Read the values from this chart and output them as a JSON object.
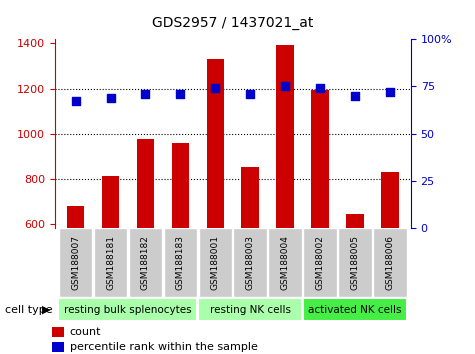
{
  "title": "GDS2957 / 1437021_at",
  "samples": [
    "GSM188007",
    "GSM188181",
    "GSM188182",
    "GSM188183",
    "GSM188001",
    "GSM188003",
    "GSM188004",
    "GSM188002",
    "GSM188005",
    "GSM188006"
  ],
  "bar_values": [
    680,
    810,
    975,
    960,
    1330,
    850,
    1395,
    1195,
    645,
    830
  ],
  "dot_values": [
    67,
    69,
    71,
    71,
    74,
    71,
    75,
    74,
    70,
    72
  ],
  "group_defs": [
    {
      "label": "resting bulk splenocytes",
      "start": 0,
      "end": 4,
      "color": "#aaffaa"
    },
    {
      "label": "resting NK cells",
      "start": 4,
      "end": 7,
      "color": "#aaffaa"
    },
    {
      "label": "activated NK cells",
      "start": 7,
      "end": 10,
      "color": "#44ee44"
    }
  ],
  "bar_color": "#cc0000",
  "dot_color": "#0000cc",
  "left_ylim": [
    580,
    1420
  ],
  "right_ylim": [
    0,
    100
  ],
  "left_yticks": [
    600,
    800,
    1000,
    1200,
    1400
  ],
  "right_yticks": [
    0,
    25,
    50,
    75,
    100
  ],
  "grid_values": [
    800,
    1000,
    1200
  ],
  "ylabel_left_color": "#cc0000",
  "ylabel_right_color": "#0000cc",
  "tick_label_bg": "#cccccc",
  "legend_count": "count",
  "legend_pct": "percentile rank within the sample",
  "cell_type_label": "cell type"
}
